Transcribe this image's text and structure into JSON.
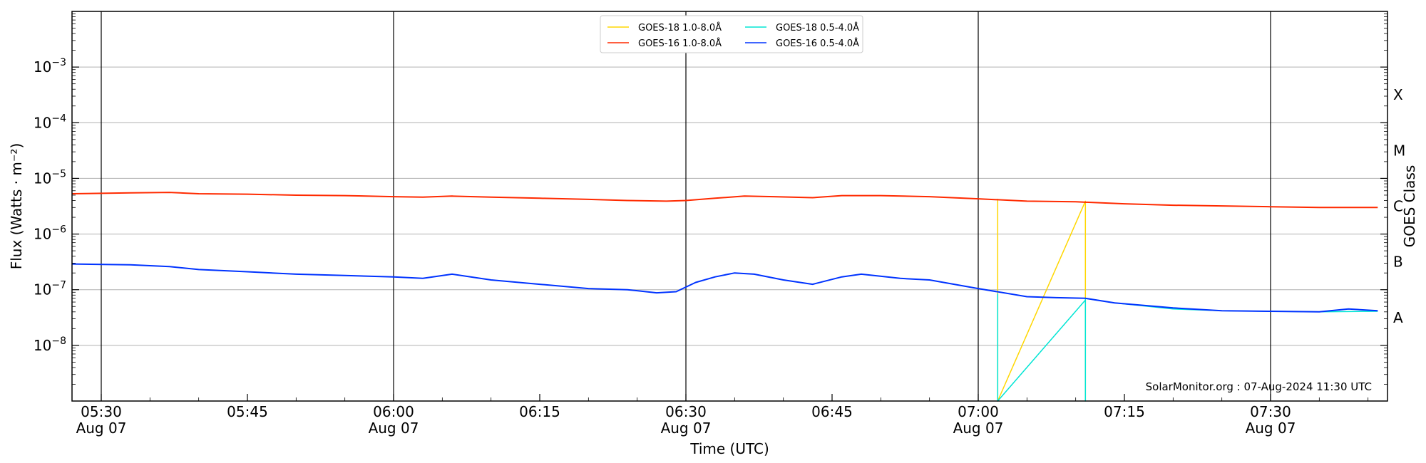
{
  "chart_data": {
    "type": "line",
    "xlabel": "Time (UTC)",
    "ylabel": "Flux (Watts · m⁻²)",
    "y2label": "GOES Class",
    "y_scale": "log",
    "ylim": [
      1e-09,
      0.01
    ],
    "xlim": [
      "05:27",
      "07:42"
    ],
    "x_ticks": [
      {
        "time": "05:30",
        "label": "05:30",
        "sublabel": "Aug 07"
      },
      {
        "time": "05:45",
        "label": "05:45",
        "sublabel": ""
      },
      {
        "time": "06:00",
        "label": "06:00",
        "sublabel": "Aug 07"
      },
      {
        "time": "06:15",
        "label": "06:15",
        "sublabel": ""
      },
      {
        "time": "06:30",
        "label": "06:30",
        "sublabel": "Aug 07"
      },
      {
        "time": "06:45",
        "label": "06:45",
        "sublabel": ""
      },
      {
        "time": "07:00",
        "label": "07:00",
        "sublabel": "Aug 07"
      },
      {
        "time": "07:15",
        "label": "07:15",
        "sublabel": ""
      },
      {
        "time": "07:30",
        "label": "07:30",
        "sublabel": "Aug 07"
      }
    ],
    "y_ticks": [
      {
        "value": 1e-08,
        "base": "10",
        "exp": "−8"
      },
      {
        "value": 1e-07,
        "base": "10",
        "exp": "−7"
      },
      {
        "value": 1e-06,
        "base": "10",
        "exp": "−6"
      },
      {
        "value": 1e-05,
        "base": "10",
        "exp": "−5"
      },
      {
        "value": 0.0001,
        "base": "10",
        "exp": "−4"
      },
      {
        "value": 0.001,
        "base": "10",
        "exp": "−3"
      }
    ],
    "goes_classes": [
      {
        "label": "A",
        "value": 3.16e-08
      },
      {
        "label": "B",
        "value": 3.16e-07
      },
      {
        "label": "C",
        "value": 3.16e-06
      },
      {
        "label": "M",
        "value": 3.16e-05
      },
      {
        "label": "X",
        "value": 0.000316
      }
    ],
    "grid": "horizontal",
    "day_markers": [
      "05:30",
      "06:00",
      "06:30",
      "07:00",
      "07:30"
    ],
    "legend_position": "top-center",
    "series": [
      {
        "name": "GOES-18 1.0-8.0Å",
        "color": "#ffd700",
        "points": [
          [
            "07:02",
            4.3e-06
          ],
          [
            "07:02",
            1e-09
          ],
          [
            "07:11",
            3.9e-06
          ],
          [
            "07:11",
            1e-09
          ]
        ]
      },
      {
        "name": "GOES-18 0.5-4.0Å",
        "color": "#00e5d4",
        "points": [
          [
            "07:02",
            8.5e-08
          ],
          [
            "07:02",
            1e-09
          ],
          [
            "07:11",
            6.5e-08
          ],
          [
            "07:11",
            1e-09
          ],
          [
            "07:11",
            7e-08
          ],
          [
            "07:14",
            5.8e-08
          ],
          [
            "07:20",
            4.5e-08
          ],
          [
            "07:25",
            4.2e-08
          ],
          [
            "07:30",
            4.1e-08
          ],
          [
            "07:35",
            4e-08
          ],
          [
            "07:41",
            4.1e-08
          ]
        ]
      },
      {
        "name": "GOES-16 1.0-8.0Å",
        "color": "#ff2a00",
        "points": [
          [
            "05:27",
            5.3e-06
          ],
          [
            "05:33",
            5.5e-06
          ],
          [
            "05:37",
            5.6e-06
          ],
          [
            "05:40",
            5.3e-06
          ],
          [
            "05:45",
            5.2e-06
          ],
          [
            "05:50",
            5e-06
          ],
          [
            "05:55",
            4.9e-06
          ],
          [
            "06:00",
            4.7e-06
          ],
          [
            "06:03",
            4.6e-06
          ],
          [
            "06:06",
            4.8e-06
          ],
          [
            "06:10",
            4.6e-06
          ],
          [
            "06:15",
            4.4e-06
          ],
          [
            "06:20",
            4.2e-06
          ],
          [
            "06:24",
            4e-06
          ],
          [
            "06:28",
            3.9e-06
          ],
          [
            "06:30",
            4e-06
          ],
          [
            "06:33",
            4.4e-06
          ],
          [
            "06:36",
            4.8e-06
          ],
          [
            "06:39",
            4.7e-06
          ],
          [
            "06:43",
            4.5e-06
          ],
          [
            "06:46",
            4.9e-06
          ],
          [
            "06:50",
            4.9e-06
          ],
          [
            "06:55",
            4.7e-06
          ],
          [
            "07:00",
            4.3e-06
          ],
          [
            "07:05",
            3.9e-06
          ],
          [
            "07:10",
            3.8e-06
          ],
          [
            "07:15",
            3.5e-06
          ],
          [
            "07:20",
            3.3e-06
          ],
          [
            "07:25",
            3.2e-06
          ],
          [
            "07:30",
            3.1e-06
          ],
          [
            "07:35",
            3e-06
          ],
          [
            "07:41",
            3e-06
          ]
        ]
      },
      {
        "name": "GOES-16 0.5-4.0Å",
        "color": "#0033ff",
        "points": [
          [
            "05:27",
            2.9e-07
          ],
          [
            "05:33",
            2.8e-07
          ],
          [
            "05:37",
            2.6e-07
          ],
          [
            "05:40",
            2.3e-07
          ],
          [
            "05:45",
            2.1e-07
          ],
          [
            "05:50",
            1.9e-07
          ],
          [
            "05:55",
            1.8e-07
          ],
          [
            "06:00",
            1.7e-07
          ],
          [
            "06:03",
            1.6e-07
          ],
          [
            "06:06",
            1.9e-07
          ],
          [
            "06:10",
            1.5e-07
          ],
          [
            "06:15",
            1.25e-07
          ],
          [
            "06:20",
            1.05e-07
          ],
          [
            "06:24",
            1e-07
          ],
          [
            "06:27",
            8.8e-08
          ],
          [
            "06:29",
            9.2e-08
          ],
          [
            "06:31",
            1.35e-07
          ],
          [
            "06:33",
            1.7e-07
          ],
          [
            "06:35",
            2e-07
          ],
          [
            "06:37",
            1.9e-07
          ],
          [
            "06:40",
            1.5e-07
          ],
          [
            "06:43",
            1.25e-07
          ],
          [
            "06:46",
            1.7e-07
          ],
          [
            "06:48",
            1.9e-07
          ],
          [
            "06:52",
            1.6e-07
          ],
          [
            "06:55",
            1.5e-07
          ],
          [
            "07:00",
            1.05e-07
          ],
          [
            "07:05",
            7.5e-08
          ],
          [
            "07:08",
            7.2e-08
          ],
          [
            "07:11",
            7e-08
          ],
          [
            "07:14",
            5.8e-08
          ],
          [
            "07:20",
            4.7e-08
          ],
          [
            "07:25",
            4.2e-08
          ],
          [
            "07:30",
            4.1e-08
          ],
          [
            "07:35",
            4e-08
          ],
          [
            "07:38",
            4.5e-08
          ],
          [
            "07:41",
            4.2e-08
          ]
        ]
      }
    ],
    "annotation": "SolarMonitor.org : 07-Aug-2024 11:30 UTC"
  }
}
